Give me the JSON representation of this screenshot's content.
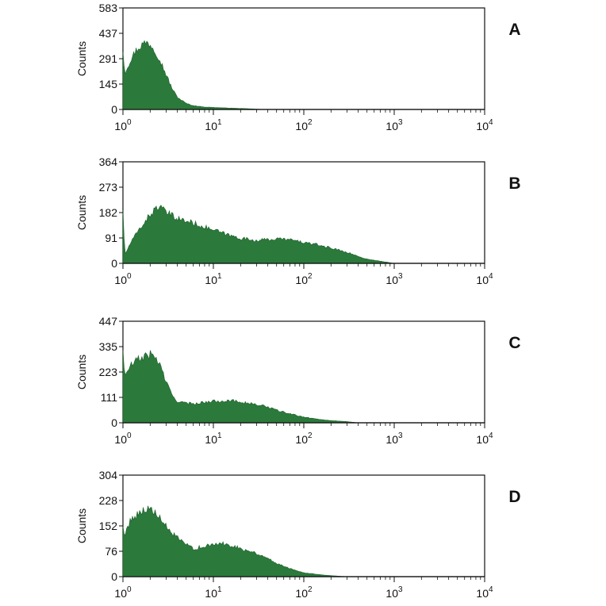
{
  "figure": {
    "fill_color": "#2b7a3b",
    "outline_color": "#1f5f2b",
    "axis_color": "#111111"
  },
  "chart_data": [
    {
      "type": "area",
      "panel_label": "A",
      "ylabel": "Counts",
      "xscale": "log",
      "xlim": [
        1,
        10000
      ],
      "ylim": [
        0,
        583
      ],
      "yticks": [
        "0",
        "145",
        "291",
        "437",
        "583"
      ],
      "xticks": [
        {
          "base": "10",
          "exp": "0"
        },
        {
          "base": "10",
          "exp": "1"
        },
        {
          "base": "10",
          "exp": "2"
        },
        {
          "base": "10",
          "exp": "3"
        },
        {
          "base": "10",
          "exp": "4"
        }
      ],
      "x": [
        1,
        1.05,
        1.2,
        1.4,
        1.6,
        1.8,
        2,
        2.2,
        2.5,
        3,
        3.5,
        4,
        5,
        6,
        7,
        8,
        10,
        12,
        15,
        20,
        25,
        30,
        35
      ],
      "y": [
        330,
        210,
        280,
        340,
        370,
        385,
        375,
        350,
        300,
        200,
        120,
        70,
        35,
        22,
        18,
        14,
        12,
        10,
        8,
        6,
        4,
        2,
        0
      ]
    },
    {
      "type": "area",
      "panel_label": "B",
      "ylabel": "Counts",
      "xscale": "log",
      "xlim": [
        1,
        10000
      ],
      "ylim": [
        0,
        364
      ],
      "yticks": [
        "0",
        "91",
        "182",
        "273",
        "364"
      ],
      "xticks": [
        {
          "base": "10",
          "exp": "0"
        },
        {
          "base": "10",
          "exp": "1"
        },
        {
          "base": "10",
          "exp": "2"
        },
        {
          "base": "10",
          "exp": "3"
        },
        {
          "base": "10",
          "exp": "4"
        }
      ],
      "x": [
        1,
        1.05,
        1.2,
        1.5,
        1.8,
        2.2,
        2.5,
        2.8,
        3.5,
        4.5,
        6,
        8,
        10,
        15,
        20,
        30,
        50,
        70,
        100,
        150,
        200,
        300,
        400,
        500,
        700,
        1000
      ],
      "y": [
        190,
        30,
        70,
        120,
        155,
        190,
        205,
        190,
        170,
        155,
        145,
        130,
        120,
        100,
        90,
        82,
        88,
        85,
        75,
        65,
        55,
        40,
        25,
        15,
        8,
        0
      ]
    },
    {
      "type": "area",
      "panel_label": "C",
      "ylabel": "Counts",
      "xscale": "log",
      "xlim": [
        1,
        10000
      ],
      "ylim": [
        0,
        447
      ],
      "yticks": [
        "0",
        "111",
        "223",
        "335",
        "447"
      ],
      "xticks": [
        {
          "base": "10",
          "exp": "0"
        },
        {
          "base": "10",
          "exp": "1"
        },
        {
          "base": "10",
          "exp": "2"
        },
        {
          "base": "10",
          "exp": "3"
        },
        {
          "base": "10",
          "exp": "4"
        }
      ],
      "x": [
        1,
        1.05,
        1.2,
        1.5,
        1.8,
        2,
        2.3,
        2.6,
        3,
        3.5,
        4,
        5,
        6,
        8,
        10,
        15,
        20,
        30,
        40,
        50,
        70,
        100,
        150,
        200,
        300,
        400
      ],
      "y": [
        320,
        200,
        250,
        280,
        295,
        300,
        290,
        250,
        180,
        120,
        95,
        85,
        85,
        90,
        95,
        98,
        92,
        80,
        70,
        55,
        40,
        25,
        15,
        10,
        5,
        0
      ]
    },
    {
      "type": "area",
      "panel_label": "D",
      "ylabel": "Counts",
      "xscale": "log",
      "xlim": [
        1,
        10000
      ],
      "ylim": [
        0,
        304
      ],
      "yticks": [
        "0",
        "76",
        "152",
        "228",
        "304"
      ],
      "xticks": [
        {
          "base": "10",
          "exp": "0"
        },
        {
          "base": "10",
          "exp": "1"
        },
        {
          "base": "10",
          "exp": "2"
        },
        {
          "base": "10",
          "exp": "3"
        },
        {
          "base": "10",
          "exp": "4"
        }
      ],
      "x": [
        1,
        1.05,
        1.2,
        1.5,
        1.8,
        2,
        2.3,
        2.6,
        3,
        3.5,
        4,
        5,
        6,
        8,
        10,
        12,
        15,
        20,
        30,
        40,
        50,
        70,
        100,
        150,
        200,
        300
      ],
      "y": [
        150,
        120,
        170,
        190,
        205,
        200,
        190,
        170,
        150,
        130,
        115,
        95,
        85,
        90,
        95,
        100,
        95,
        85,
        70,
        55,
        40,
        25,
        12,
        6,
        3,
        0
      ]
    }
  ]
}
